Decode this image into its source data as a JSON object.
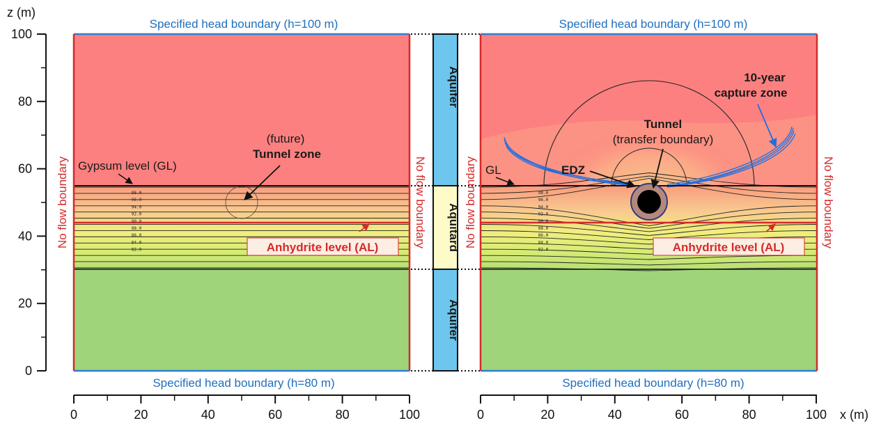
{
  "axes": {
    "z_label": "z (m)",
    "x_label": "x (m)",
    "z_ticks": [
      "0",
      "20",
      "40",
      "60",
      "80",
      "100"
    ],
    "x_ticks": [
      "0",
      "20",
      "40",
      "60",
      "80",
      "100"
    ]
  },
  "boundaries": {
    "top": "Specified head boundary (h=100 m)",
    "bottom": "Specified head boundary (h=80 m)",
    "side": "No flow boundary"
  },
  "layers": {
    "upper": "Aquifer",
    "middle": "Aquitard",
    "lower": "Aquifer"
  },
  "left_panel": {
    "gypsum": "Gypsum level (GL)",
    "future": "(future)",
    "tunnel_zone": "Tunnel zone",
    "anhydrite": "Anhydrite level (AL)"
  },
  "right_panel": {
    "gl": "GL",
    "tunnel": "Tunnel",
    "transfer": "(transfer boundary)",
    "edz": "EDZ",
    "capture_line1": "10-year",
    "capture_line2": "capture zone",
    "anhydrite": "Anhydrite level (AL)"
  },
  "contour_labels": [
    "98.0",
    "96.0",
    "94.0",
    "92.0",
    "90.0",
    "88.0",
    "86.0",
    "84.0",
    "82.0"
  ],
  "colors": {
    "aquifer_top": "#fd8080",
    "aquifer_bottom": "#9fd47b",
    "aquifer_column": "#6cc6ee",
    "aquitard_column": "#fffbc8",
    "boundary_blue": "#2a7fd6",
    "boundary_red": "#d42a2a",
    "capture_zone": "#1f6fe0"
  }
}
